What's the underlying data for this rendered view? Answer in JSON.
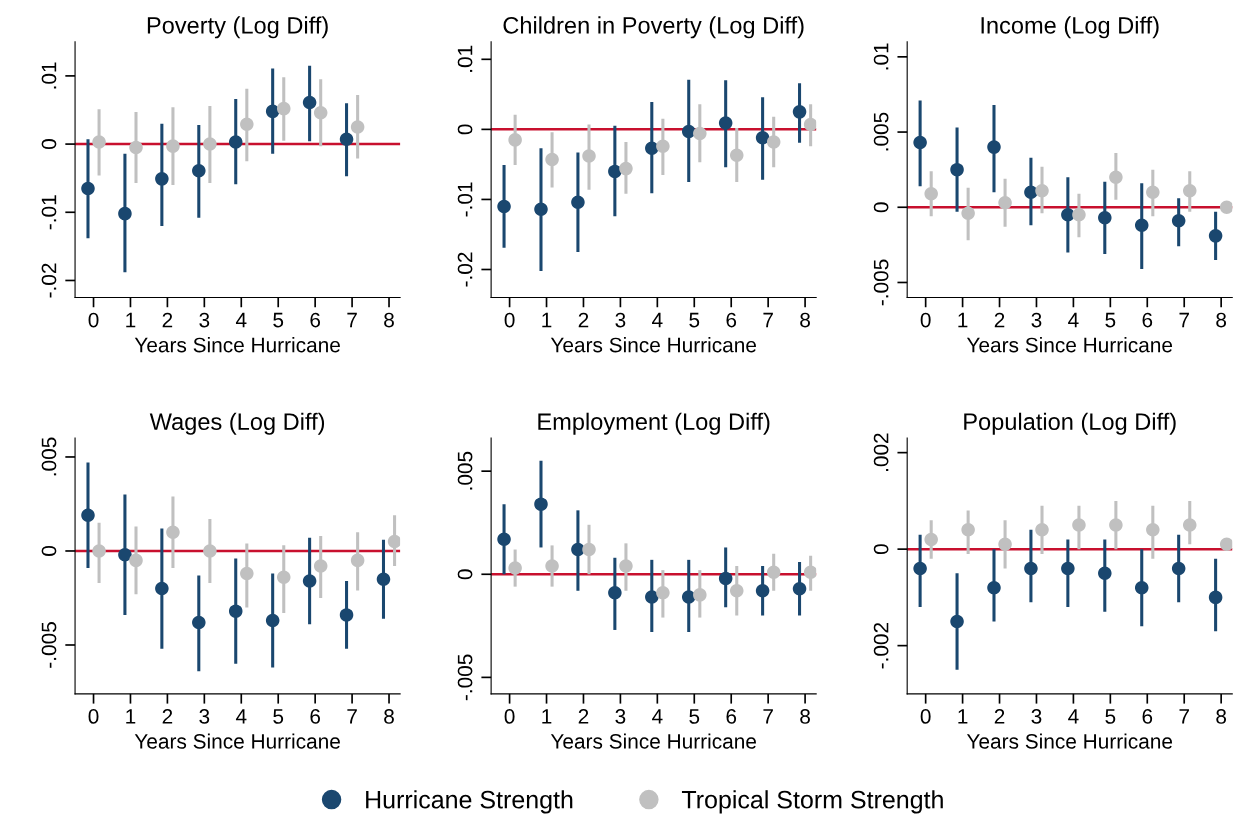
{
  "chart_data": [
    {
      "type": "scatter",
      "title": "Poverty (Log Diff)",
      "xlabel": "Years Since Hurricane",
      "xlim": [
        -0.5,
        8.3
      ],
      "xticks": [
        0,
        1,
        2,
        3,
        4,
        5,
        6,
        7,
        8
      ],
      "ylim": [
        -0.0225,
        0.015
      ],
      "yticks": [
        {
          "value": -0.02,
          "label": "-.02"
        },
        {
          "value": -0.01,
          "label": "-.01"
        },
        0,
        {
          "value": 0.01,
          "label": ".01"
        }
      ],
      "grid": false,
      "marker": "circle",
      "legend": "bottom",
      "ref_lines": [
        {
          "axis": "y",
          "value": 0,
          "color": "#c8102e"
        }
      ],
      "series": [
        {
          "name": "Hurricane Strength",
          "color": "#1a476f",
          "x": [
            -0.15,
            0.85,
            1.85,
            2.85,
            3.85,
            4.85,
            5.85,
            6.85
          ],
          "values": [
            -0.0065,
            -0.0102,
            -0.0051,
            -0.0039,
            0.0003,
            0.0048,
            0.0061,
            0.0007
          ],
          "errors": [
            [
              -0.0138,
              0.0007
            ],
            [
              -0.0188,
              -0.0014
            ],
            [
              -0.012,
              0.003
            ],
            [
              -0.0108,
              0.0028
            ],
            [
              -0.0059,
              0.0066
            ],
            [
              -0.0014,
              0.0111
            ],
            [
              0.0004,
              0.0115
            ],
            [
              -0.0047,
              0.006
            ]
          ]
        },
        {
          "name": "Tropical Storm Strength",
          "color": "#c0c0c0",
          "x": [
            0.15,
            1.15,
            2.15,
            3.15,
            4.15,
            5.15,
            6.15,
            7.15
          ],
          "values": [
            0.0003,
            -0.0005,
            -0.0003,
            0,
            0.0029,
            0.0052,
            0.0046,
            0.0025
          ],
          "errors": [
            [
              -0.0046,
              0.0051
            ],
            [
              -0.0057,
              0.0047
            ],
            [
              -0.006,
              0.0054
            ],
            [
              -0.0057,
              0.0056
            ],
            [
              -0.0025,
              0.0081
            ],
            [
              0.0005,
              0.0098
            ],
            [
              -0.0003,
              0.0095
            ],
            [
              -0.0021,
              0.0072
            ]
          ]
        }
      ]
    },
    {
      "type": "scatter",
      "title": "Children in Poverty (Log Diff)",
      "xlabel": "Years Since Hurricane",
      "xlim": [
        -0.5,
        8.3
      ],
      "xticks": [
        0,
        1,
        2,
        3,
        4,
        5,
        6,
        7,
        8
      ],
      "ylim": [
        -0.024,
        0.0125
      ],
      "yticks": [
        {
          "value": -0.02,
          "label": "-.02"
        },
        {
          "value": -0.01,
          "label": "-.01"
        },
        0,
        {
          "value": 0.01,
          "label": ".01"
        }
      ],
      "grid": false,
      "marker": "circle",
      "ref_lines": [
        {
          "axis": "y",
          "value": 0,
          "color": "#c8102e"
        }
      ],
      "series": [
        {
          "name": "Hurricane Strength",
          "color": "#1a476f",
          "x": [
            -0.15,
            0.85,
            1.85,
            2.85,
            3.85,
            4.85,
            5.85,
            6.85,
            7.85
          ],
          "values": [
            -0.011,
            -0.0114,
            -0.0104,
            -0.006,
            -0.0027,
            -0.0003,
            0.0009,
            -0.0012,
            0.0025
          ],
          "errors": [
            [
              -0.0169,
              -0.0051
            ],
            [
              -0.0202,
              -0.0027
            ],
            [
              -0.0175,
              -0.0033
            ],
            [
              -0.0124,
              0.0005
            ],
            [
              -0.0091,
              0.0039
            ],
            [
              -0.0075,
              0.0071
            ],
            [
              -0.0054,
              0.007
            ],
            [
              -0.0072,
              0.0046
            ],
            [
              -0.0019,
              0.0066
            ]
          ]
        },
        {
          "name": "Tropical Storm Strength",
          "color": "#c0c0c0",
          "x": [
            0.15,
            1.15,
            2.15,
            3.15,
            4.15,
            5.15,
            6.15,
            7.15,
            8.15
          ],
          "values": [
            -0.0015,
            -0.0043,
            -0.0038,
            -0.0056,
            -0.0024,
            -0.0006,
            -0.0037,
            -0.0018,
            0.0007
          ],
          "errors": [
            [
              -0.0051,
              0.0021
            ],
            [
              -0.0083,
              -0.0004
            ],
            [
              -0.0086,
              0.0007
            ],
            [
              -0.0092,
              -0.0018
            ],
            [
              -0.0065,
              0.0015
            ],
            [
              -0.0047,
              0.0036
            ],
            [
              -0.0075,
              0.0002
            ],
            [
              -0.0054,
              0.0018
            ],
            [
              -0.0024,
              0.0036
            ]
          ]
        }
      ]
    },
    {
      "type": "scatter",
      "title": "Income (Log Diff)",
      "xlabel": "Years Since Hurricane",
      "xlim": [
        -0.5,
        8.3
      ],
      "xticks": [
        0,
        1,
        2,
        3,
        4,
        5,
        6,
        7,
        8
      ],
      "ylim": [
        -0.006,
        0.011
      ],
      "yticks": [
        {
          "value": -0.005,
          "label": "-.005"
        },
        0,
        {
          "value": 0.005,
          "label": ".005"
        },
        {
          "value": 0.01,
          "label": ".01"
        }
      ],
      "grid": false,
      "marker": "circle",
      "ref_lines": [
        {
          "axis": "y",
          "value": 0,
          "color": "#c8102e"
        }
      ],
      "series": [
        {
          "name": "Hurricane Strength",
          "color": "#1a476f",
          "x": [
            -0.15,
            0.85,
            1.85,
            2.85,
            3.85,
            4.85,
            5.85,
            6.85,
            7.85
          ],
          "values": [
            0.0043,
            0.0025,
            0.004,
            0.001,
            -0.0005,
            -0.0007,
            -0.0012,
            -0.0009,
            -0.0019
          ],
          "errors": [
            [
              0.0014,
              0.0071
            ],
            [
              -0.0003,
              0.0053
            ],
            [
              0.001,
              0.0068
            ],
            [
              -0.0012,
              0.0033
            ],
            [
              -0.003,
              0.002
            ],
            [
              -0.0031,
              0.0017
            ],
            [
              -0.0041,
              0.0016
            ],
            [
              -0.0026,
              0.0006
            ],
            [
              -0.0035,
              -0.0003
            ]
          ]
        },
        {
          "name": "Tropical Storm Strength",
          "color": "#c0c0c0",
          "x": [
            0.15,
            1.15,
            2.15,
            3.15,
            4.15,
            5.15,
            6.15,
            7.15,
            8.15
          ],
          "values": [
            0.0009,
            -0.0004,
            0.0003,
            0.0011,
            -0.0005,
            0.002,
            0.001,
            0.0011,
            0
          ],
          "errors": [
            [
              -0.0006,
              0.0024
            ],
            [
              -0.0022,
              0.0013
            ],
            [
              -0.0013,
              0.0019
            ],
            [
              -0.0004,
              0.0027
            ],
            [
              -0.002,
              0.0009
            ],
            [
              0.0005,
              0.0036
            ],
            [
              -0.0006,
              0.0025
            ],
            [
              -0.0003,
              0.0024
            ],
            null
          ]
        }
      ]
    },
    {
      "type": "scatter",
      "title": "Wages (Log Diff)",
      "xlabel": "Years Since Hurricane",
      "xlim": [
        -0.5,
        8.3
      ],
      "xticks": [
        0,
        1,
        2,
        3,
        4,
        5,
        6,
        7,
        8
      ],
      "ylim": [
        -0.0076,
        0.006
      ],
      "yticks": [
        {
          "value": -0.005,
          "label": "-.005"
        },
        0,
        {
          "value": 0.005,
          "label": ".005"
        }
      ],
      "grid": false,
      "marker": "circle",
      "ref_lines": [
        {
          "axis": "y",
          "value": 0,
          "color": "#c8102e"
        }
      ],
      "series": [
        {
          "name": "Hurricane Strength",
          "color": "#1a476f",
          "x": [
            -0.15,
            0.85,
            1.85,
            2.85,
            3.85,
            4.85,
            5.85,
            6.85,
            7.85
          ],
          "values": [
            0.0019,
            -0.0002,
            -0.002,
            -0.0038,
            -0.0032,
            -0.0037,
            -0.0016,
            -0.0034,
            -0.0015
          ],
          "errors": [
            [
              -0.0009,
              0.0047
            ],
            [
              -0.0034,
              0.003
            ],
            [
              -0.0052,
              0.0012
            ],
            [
              -0.0064,
              -0.0013
            ],
            [
              -0.006,
              -0.0004
            ],
            [
              -0.0062,
              -0.0012
            ],
            [
              -0.0039,
              0.0007
            ],
            [
              -0.0052,
              -0.0016
            ],
            [
              -0.0036,
              0.0006
            ]
          ]
        },
        {
          "name": "Tropical Storm Strength",
          "color": "#c0c0c0",
          "x": [
            0.15,
            1.15,
            2.15,
            3.15,
            4.15,
            5.15,
            6.15,
            7.15,
            8.15
          ],
          "values": [
            0,
            -0.0005,
            0.001,
            0,
            -0.0012,
            -0.0014,
            -0.0008,
            -0.0005,
            0.0005
          ],
          "errors": [
            [
              -0.0017,
              0.0015
            ],
            [
              -0.0023,
              0.0013
            ],
            [
              -0.0009,
              0.0029
            ],
            [
              -0.0017,
              0.0017
            ],
            [
              -0.003,
              0.0004
            ],
            [
              -0.0033,
              0.0003
            ],
            [
              -0.0025,
              0.0008
            ],
            [
              -0.0021,
              0.001
            ],
            [
              -0.0008,
              0.0019
            ]
          ]
        }
      ]
    },
    {
      "type": "scatter",
      "title": "Employment (Log Diff)",
      "xlabel": "Years Since Hurricane",
      "xlim": [
        -0.5,
        8.3
      ],
      "xticks": [
        0,
        1,
        2,
        3,
        4,
        5,
        6,
        7,
        8
      ],
      "ylim": [
        -0.0058,
        0.0066
      ],
      "yticks": [
        {
          "value": -0.005,
          "label": "-.005"
        },
        0,
        {
          "value": 0.005,
          "label": ".005"
        }
      ],
      "grid": false,
      "marker": "circle",
      "ref_lines": [
        {
          "axis": "y",
          "value": 0,
          "color": "#c8102e"
        }
      ],
      "series": [
        {
          "name": "Hurricane Strength",
          "color": "#1a476f",
          "x": [
            -0.15,
            0.85,
            1.85,
            2.85,
            3.85,
            4.85,
            5.85,
            6.85,
            7.85
          ],
          "values": [
            0.0017,
            0.0034,
            0.0012,
            -0.0009,
            -0.0011,
            -0.0011,
            -0.0002,
            -0.0008,
            -0.0007
          ],
          "errors": [
            [
              0.0,
              0.0034
            ],
            [
              0.0013,
              0.0055
            ],
            [
              -0.0008,
              0.0031
            ],
            [
              -0.0027,
              0.0008
            ],
            [
              -0.0028,
              0.0007
            ],
            [
              -0.0028,
              0.0007
            ],
            [
              -0.0016,
              0.0013
            ],
            [
              -0.002,
              0.0004
            ],
            [
              -0.002,
              0.0006
            ]
          ]
        },
        {
          "name": "Tropical Storm Strength",
          "color": "#c0c0c0",
          "x": [
            0.15,
            1.15,
            2.15,
            3.15,
            4.15,
            5.15,
            6.15,
            7.15,
            8.15
          ],
          "values": [
            0.0003,
            0.0004,
            0.0012,
            0.0004,
            -0.0009,
            -0.001,
            -0.0008,
            0.0001,
            0.0001
          ],
          "errors": [
            [
              -0.0006,
              0.0012
            ],
            [
              -0.0006,
              0.0014
            ],
            [
              0.0,
              0.0024
            ],
            [
              -0.0008,
              0.0015
            ],
            [
              -0.0021,
              0.0002
            ],
            [
              -0.0021,
              0.0002
            ],
            [
              -0.002,
              0.0004
            ],
            [
              -0.0008,
              0.001
            ],
            [
              -0.0008,
              0.0009
            ]
          ]
        }
      ]
    },
    {
      "type": "scatter",
      "title": "Population (Log Diff)",
      "xlabel": "Years Since Hurricane",
      "xlim": [
        -0.5,
        8.3
      ],
      "xticks": [
        0,
        1,
        2,
        3,
        4,
        5,
        6,
        7,
        8
      ],
      "ylim": [
        -0.003,
        0.0023
      ],
      "yticks": [
        {
          "value": -0.002,
          "label": "-.002"
        },
        0,
        {
          "value": 0.002,
          "label": ".002"
        }
      ],
      "grid": false,
      "marker": "circle",
      "ref_lines": [
        {
          "axis": "y",
          "value": 0,
          "color": "#c8102e"
        }
      ],
      "series": [
        {
          "name": "Hurricane Strength",
          "color": "#1a476f",
          "x": [
            -0.15,
            0.85,
            1.85,
            2.85,
            3.85,
            4.85,
            5.85,
            6.85,
            7.85
          ],
          "values": [
            -0.0004,
            -0.0015,
            -0.0008,
            -0.0004,
            -0.0004,
            -0.0005,
            -0.0008,
            -0.0004,
            -0.001
          ],
          "errors": [
            [
              -0.0012,
              0.0003
            ],
            [
              -0.0025,
              -0.0005
            ],
            [
              -0.0015,
              0.0
            ],
            [
              -0.0011,
              0.0004
            ],
            [
              -0.0012,
              0.0002
            ],
            [
              -0.0013,
              0.0002
            ],
            [
              -0.0016,
              0.0
            ],
            [
              -0.0011,
              0.0003
            ],
            [
              -0.0017,
              -0.0002
            ]
          ]
        },
        {
          "name": "Tropical Storm Strength",
          "color": "#c0c0c0",
          "x": [
            0.15,
            1.15,
            2.15,
            3.15,
            4.15,
            5.15,
            6.15,
            7.15,
            8.15
          ],
          "values": [
            0.0002,
            0.0004,
            0.0001,
            0.0004,
            0.0005,
            0.0005,
            0.0004,
            0.0005,
            0.0001
          ],
          "errors": [
            [
              -0.0002,
              0.0006
            ],
            [
              -0.0001,
              0.0008
            ],
            [
              -0.0004,
              0.0006
            ],
            [
              -0.0001,
              0.0009
            ],
            [
              0.0,
              0.0009
            ],
            [
              0.0,
              0.001
            ],
            [
              -0.0002,
              0.0009
            ],
            [
              0.0001,
              0.001
            ],
            null
          ]
        }
      ]
    }
  ]
}
